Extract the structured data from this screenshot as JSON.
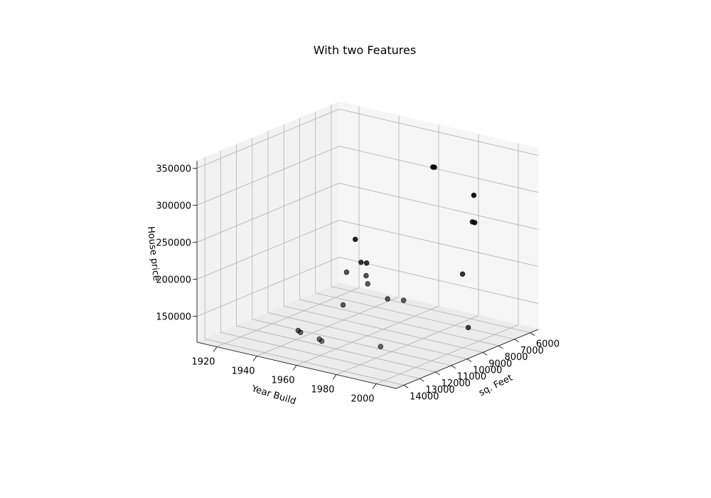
{
  "chart_data": {
    "type": "scatter",
    "projection": "3d",
    "title": "With two Features",
    "xlabel": "Year Build",
    "ylabel": "sq. Feet",
    "zlabel": "House price",
    "xticks": [
      "1920",
      "1940",
      "1960",
      "1980",
      "2000"
    ],
    "yticks": [
      "6000",
      "7000",
      "8000",
      "9000",
      "10000",
      "11000",
      "12000",
      "13000",
      "14000"
    ],
    "zticks": [
      "150000",
      "200000",
      "250000",
      "300000",
      "350000"
    ],
    "xlim": [
      1910,
      2010
    ],
    "ylim": [
      5500,
      14500
    ],
    "zlim": [
      115000,
      360000
    ],
    "grid": true,
    "marker_color": "#000000",
    "points": [
      {
        "x": 1965,
        "y": 6500,
        "z": 315000
      },
      {
        "x": 1966,
        "y": 6520,
        "z": 315500
      },
      {
        "x": 1984,
        "y": 6300,
        "z": 287000
      },
      {
        "x": 1990,
        "y": 7000,
        "z": 260000
      },
      {
        "x": 1989,
        "y": 7020,
        "z": 260500
      },
      {
        "x": 1995,
        "y": 8400,
        "z": 206000
      },
      {
        "x": 1990,
        "y": 11500,
        "z": 195000
      },
      {
        "x": 1968,
        "y": 11000,
        "z": 199000
      },
      {
        "x": 1964,
        "y": 10600,
        "z": 204000
      },
      {
        "x": 1955,
        "y": 10700,
        "z": 204000
      },
      {
        "x": 1944,
        "y": 8400,
        "z": 190000
      },
      {
        "x": 1946,
        "y": 8300,
        "z": 189500
      },
      {
        "x": 1978,
        "y": 11000,
        "z": 185000
      },
      {
        "x": 2005,
        "y": 9300,
        "z": 148000
      },
      {
        "x": 1958,
        "y": 11300,
        "z": 167000
      },
      {
        "x": 1930,
        "y": 7000,
        "z": 200000
      },
      {
        "x": 1941,
        "y": 12000,
        "z": 128000
      },
      {
        "x": 1943,
        "y": 12100,
        "z": 127500
      },
      {
        "x": 1958,
        "y": 12800,
        "z": 134000
      },
      {
        "x": 1960,
        "y": 12900,
        "z": 133500
      },
      {
        "x": 1984,
        "y": 12200,
        "z": 135000
      }
    ]
  }
}
